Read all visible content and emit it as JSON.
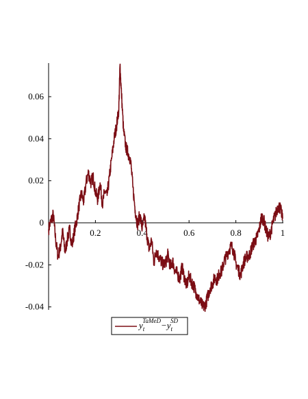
{
  "chart_data": {
    "type": "line",
    "title": "",
    "xlabel": "",
    "ylabel": "",
    "xlim": [
      0,
      1
    ],
    "ylim": [
      -0.04,
      0.075
    ],
    "x_ticks": [
      0.2,
      0.4,
      0.6,
      0.8,
      1
    ],
    "x_tick_labels": [
      "0.2",
      "0.4",
      "0.6",
      "0.8",
      "1"
    ],
    "y_ticks": [
      -0.04,
      -0.02,
      0,
      0.02,
      0.04,
      0.06
    ],
    "y_tick_labels": [
      "-0.04",
      "-0.02",
      "0",
      "0.02",
      "0.04",
      "0.06"
    ],
    "grid": false,
    "legend_position": "bottom-center",
    "series": [
      {
        "legend": {
          "y": "y",
          "sub1": "t",
          "sup1": "TaMeD",
          "minus": "−",
          "sub2": "t",
          "sup2": "SD"
        },
        "color": "#7b0d14",
        "x": [
          0.0,
          0.01,
          0.02,
          0.03,
          0.04,
          0.05,
          0.06,
          0.07,
          0.08,
          0.09,
          0.1,
          0.11,
          0.12,
          0.13,
          0.14,
          0.15,
          0.16,
          0.17,
          0.18,
          0.19,
          0.2,
          0.21,
          0.22,
          0.23,
          0.24,
          0.25,
          0.26,
          0.27,
          0.28,
          0.29,
          0.3,
          0.305,
          0.31,
          0.32,
          0.33,
          0.34,
          0.35,
          0.36,
          0.37,
          0.38,
          0.39,
          0.4,
          0.41,
          0.42,
          0.43,
          0.44,
          0.45,
          0.46,
          0.47,
          0.48,
          0.49,
          0.5,
          0.51,
          0.52,
          0.53,
          0.54,
          0.55,
          0.56,
          0.57,
          0.58,
          0.59,
          0.6,
          0.61,
          0.62,
          0.63,
          0.64,
          0.65,
          0.66,
          0.67,
          0.68,
          0.69,
          0.7,
          0.71,
          0.72,
          0.73,
          0.74,
          0.75,
          0.76,
          0.77,
          0.78,
          0.79,
          0.8,
          0.81,
          0.82,
          0.83,
          0.84,
          0.85,
          0.86,
          0.87,
          0.88,
          0.89,
          0.9,
          0.91,
          0.92,
          0.93,
          0.94,
          0.95,
          0.96,
          0.97,
          0.98,
          0.99,
          1.0
        ],
        "y": [
          -0.003,
          0.001,
          0.004,
          -0.008,
          -0.016,
          -0.012,
          -0.004,
          -0.014,
          -0.008,
          -0.003,
          -0.011,
          -0.004,
          0.001,
          0.008,
          0.014,
          0.01,
          0.019,
          0.024,
          0.019,
          0.022,
          0.015,
          0.011,
          0.019,
          0.009,
          0.015,
          0.013,
          0.022,
          0.031,
          0.04,
          0.046,
          0.054,
          0.075,
          0.064,
          0.044,
          0.036,
          0.033,
          0.03,
          0.017,
          0.006,
          -0.001,
          0.004,
          -0.003,
          0.003,
          -0.006,
          -0.013,
          -0.008,
          -0.019,
          -0.013,
          -0.016,
          -0.018,
          -0.02,
          -0.019,
          -0.015,
          -0.021,
          -0.018,
          -0.023,
          -0.024,
          -0.027,
          -0.021,
          -0.026,
          -0.03,
          -0.025,
          -0.028,
          -0.03,
          -0.033,
          -0.036,
          -0.038,
          -0.04,
          -0.039,
          -0.035,
          -0.031,
          -0.029,
          -0.026,
          -0.027,
          -0.024,
          -0.023,
          -0.018,
          -0.016,
          -0.013,
          -0.011,
          -0.013,
          -0.019,
          -0.022,
          -0.025,
          -0.02,
          -0.017,
          -0.016,
          -0.015,
          -0.011,
          -0.009,
          -0.007,
          -0.003,
          0.003,
          0.001,
          -0.004,
          -0.007,
          -0.004,
          0.001,
          0.004,
          0.008,
          0.007,
          0.002
        ]
      }
    ]
  }
}
